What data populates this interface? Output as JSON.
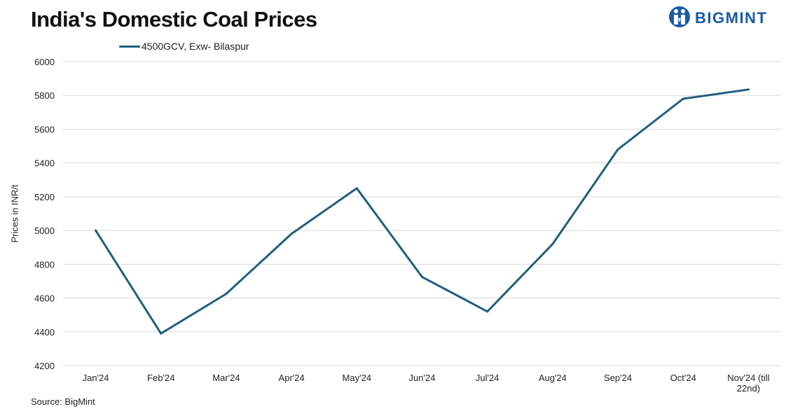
{
  "colors": {
    "series": "#1f5f7f",
    "grid": "#d9d9d9",
    "brand": "#1b5aa8"
  },
  "brand": {
    "name": "BIGMINT",
    "logo_icon": "people-logo-icon"
  },
  "source": "Source: BigMint",
  "chart_data": {
    "type": "line",
    "title": "India's Domestic Coal Prices",
    "ylabel": "Prices in INR/t",
    "xlabel": "",
    "ylim": [
      4200,
      6000
    ],
    "yticks": [
      4200,
      4400,
      4600,
      4800,
      5000,
      5200,
      5400,
      5600,
      5800,
      6000
    ],
    "grid": true,
    "legend_position": "top-left",
    "categories": [
      "Jan'24",
      "Feb'24",
      "Mar'24",
      "Apr'24",
      "May'24",
      "Jun'24",
      "Jul'24",
      "Aug'24",
      "Sep'24",
      "Oct'24",
      "Nov'24 (till 22nd)"
    ],
    "series": [
      {
        "name": "4500GCV, Exw- Bilaspur",
        "values": [
          5000,
          4390,
          4625,
          4980,
          5250,
          4725,
          4520,
          4920,
          5480,
          5780,
          5835
        ]
      }
    ]
  }
}
